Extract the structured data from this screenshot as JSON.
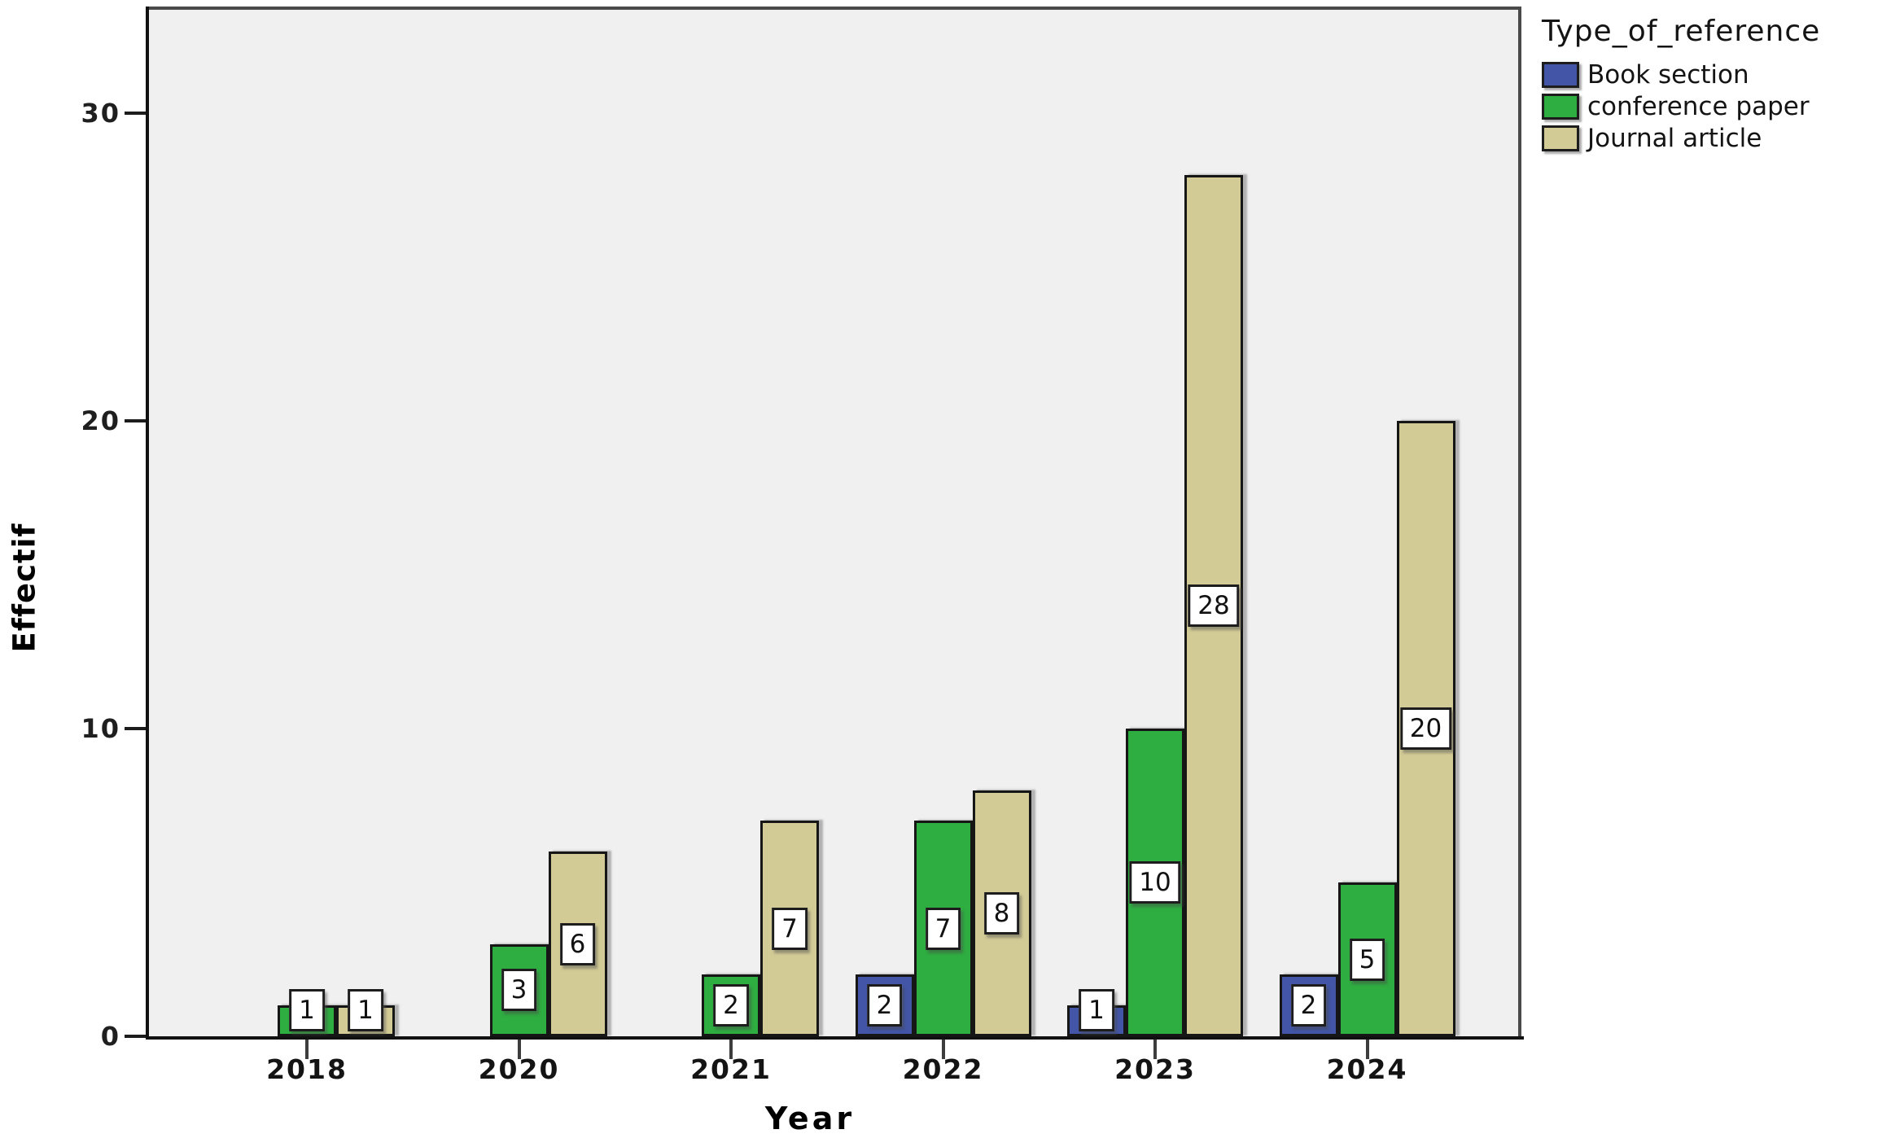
{
  "figure": {
    "y_axis": {
      "title": "Effectif",
      "tick_labels": [
        "0",
        "10",
        "20",
        "30"
      ]
    },
    "x_axis": {
      "title": "Year",
      "tick_labels": [
        "2018",
        "2020",
        "2021",
        "2022",
        "2023",
        "2024"
      ]
    },
    "legend": {
      "title": "Type_of_reference",
      "items": [
        {
          "label": "Book section",
          "color": "#4255a6"
        },
        {
          "label": "conference paper",
          "color": "#2ead41"
        },
        {
          "label": "Journal article",
          "color": "#d3cb96"
        }
      ]
    }
  },
  "chart_data": {
    "type": "bar",
    "title": "",
    "xlabel": "Year",
    "ylabel": "Effectif",
    "categories": [
      "2018",
      "2020",
      "2021",
      "2022",
      "2023",
      "2024"
    ],
    "series": [
      {
        "name": "Book section",
        "color": "#4255a6",
        "values": [
          null,
          null,
          null,
          2,
          1,
          2
        ]
      },
      {
        "name": "conference paper",
        "color": "#2ead41",
        "values": [
          1,
          3,
          2,
          7,
          10,
          5
        ]
      },
      {
        "name": "Journal article",
        "color": "#d3cb96",
        "values": [
          1,
          6,
          7,
          8,
          28,
          20
        ]
      }
    ],
    "bar_value_labels": true,
    "ylim": [
      0,
      33
    ],
    "yticks": [
      0,
      10,
      20,
      30
    ],
    "grid": false,
    "plot_background": "#f0f0f0",
    "legend_position": "top-right-outside"
  }
}
